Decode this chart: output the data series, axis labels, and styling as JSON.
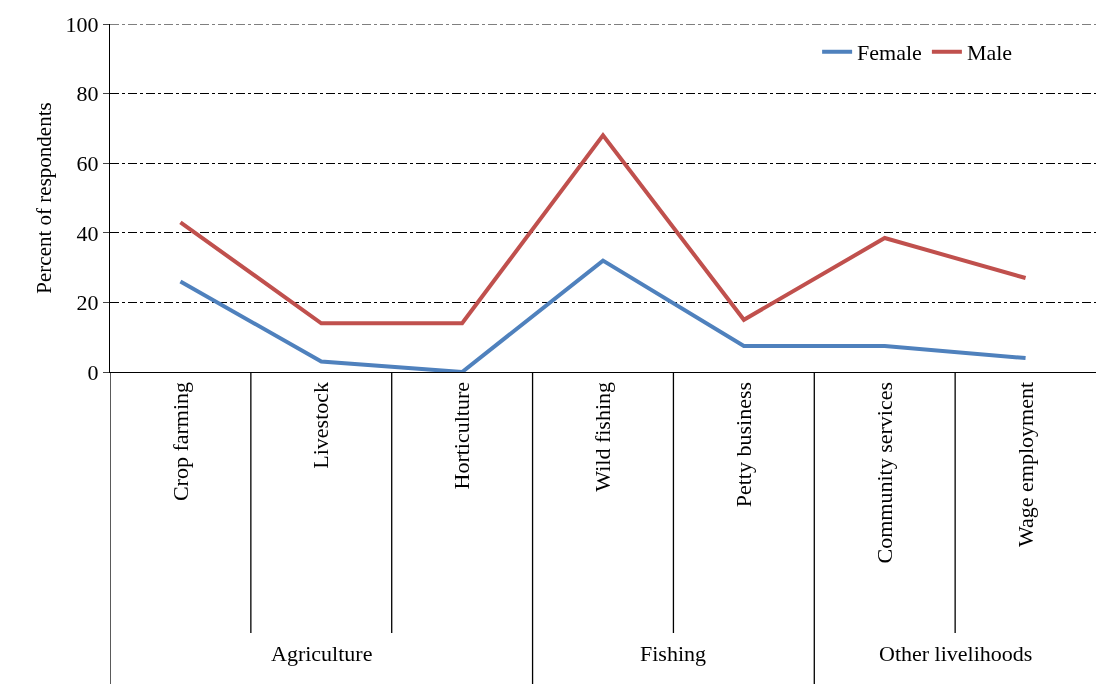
{
  "chart_data": {
    "type": "line",
    "ylabel": "Percent of respondents",
    "categories": [
      "Crop farming",
      "Livestock",
      "Horticulture",
      "Wild fishing",
      "Petty business",
      "Community services",
      "Wage employment"
    ],
    "series": [
      {
        "name": "Female",
        "color": "#4f81bd",
        "values": [
          26,
          3,
          0,
          32,
          7.5,
          7.5,
          4
        ]
      },
      {
        "name": "Male",
        "color": "#c0504d",
        "values": [
          43,
          14,
          14,
          68,
          15,
          38.5,
          27
        ]
      }
    ],
    "annotations": [
      "Agriculture",
      "Fishing",
      "Other livelihoods"
    ],
    "ylim": [
      0,
      100
    ],
    "yticks": [
      0,
      20,
      40,
      60,
      80,
      100
    ],
    "grid": "y",
    "legend": "top right",
    "marker": "none",
    "line_style": "solid"
  }
}
